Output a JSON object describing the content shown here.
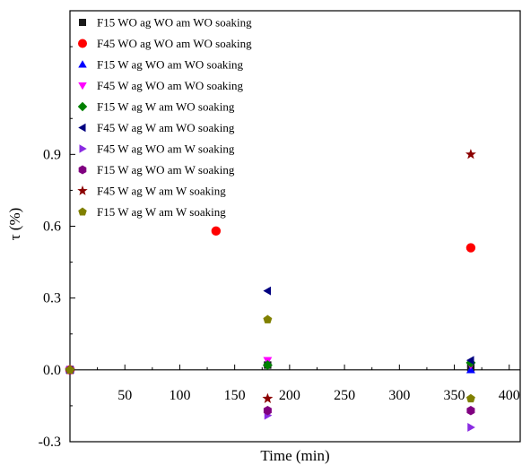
{
  "chart_data": {
    "type": "scatter",
    "xlabel": "Time (min)",
    "ylabel": "τ (%)",
    "xlim": [
      0,
      410
    ],
    "ylim": [
      -0.3,
      1.5
    ],
    "x_ticks": [
      50,
      100,
      150,
      200,
      250,
      300,
      350,
      400
    ],
    "x_tick_labels": [
      "50",
      "100",
      "150",
      "200",
      "250",
      "300",
      "350",
      "400"
    ],
    "y_ticks": [
      -0.3,
      0.0,
      0.3,
      0.6,
      0.9
    ],
    "y_tick_labels": [
      "-0.3",
      "0.0",
      "0.3",
      "0.6",
      "0.9"
    ],
    "grid": false,
    "legend_position": "top-left",
    "series": [
      {
        "name": "F15 WO ag WO am WO soaking",
        "marker": "square",
        "color": "#1a1a1a",
        "points": [
          [
            0,
            0.0
          ],
          [
            180,
            0.02
          ],
          [
            365,
            0.01
          ]
        ]
      },
      {
        "name": "F45 WO ag WO am WO soaking",
        "marker": "circle",
        "color": "#ff0000",
        "points": [
          [
            0,
            0.0
          ],
          [
            133,
            0.58
          ],
          [
            365,
            0.51
          ]
        ]
      },
      {
        "name": "F15 W ag WO am WO soaking",
        "marker": "triangle-up",
        "color": "#0000ff",
        "points": [
          [
            0,
            0.0
          ],
          [
            180,
            0.03
          ],
          [
            365,
            0.0
          ]
        ]
      },
      {
        "name": "F45 W ag WO am WO soaking",
        "marker": "triangle-down",
        "color": "#ff00ff",
        "points": [
          [
            0,
            0.0
          ],
          [
            180,
            0.04
          ],
          [
            365,
            0.02
          ]
        ]
      },
      {
        "name": "F15 W ag W am WO soaking",
        "marker": "diamond",
        "color": "#008000",
        "points": [
          [
            0,
            0.0
          ],
          [
            180,
            0.02
          ],
          [
            365,
            0.03
          ]
        ]
      },
      {
        "name": "F45 W ag W am WO soaking",
        "marker": "triangle-left",
        "color": "#000080",
        "points": [
          [
            0,
            0.0
          ],
          [
            180,
            0.33
          ],
          [
            365,
            0.04
          ]
        ]
      },
      {
        "name": "F45 W ag WO am W soaking",
        "marker": "triangle-right",
        "color": "#8a2be2",
        "points": [
          [
            0,
            0.0
          ],
          [
            180,
            -0.19
          ],
          [
            365,
            -0.24
          ]
        ]
      },
      {
        "name": "F15 W ag WO am W soaking",
        "marker": "hexagon",
        "color": "#800080",
        "points": [
          [
            0,
            0.0
          ],
          [
            180,
            -0.17
          ],
          [
            365,
            -0.17
          ]
        ]
      },
      {
        "name": "F45 W ag W am W soaking",
        "marker": "star",
        "color": "#8b0000",
        "points": [
          [
            0,
            0.0
          ],
          [
            180,
            -0.12
          ],
          [
            365,
            0.9
          ]
        ]
      },
      {
        "name": "F15 W ag W am W soaking",
        "marker": "pentagon",
        "color": "#808000",
        "points": [
          [
            0,
            0.0
          ],
          [
            180,
            0.21
          ],
          [
            365,
            -0.12
          ]
        ]
      }
    ]
  }
}
